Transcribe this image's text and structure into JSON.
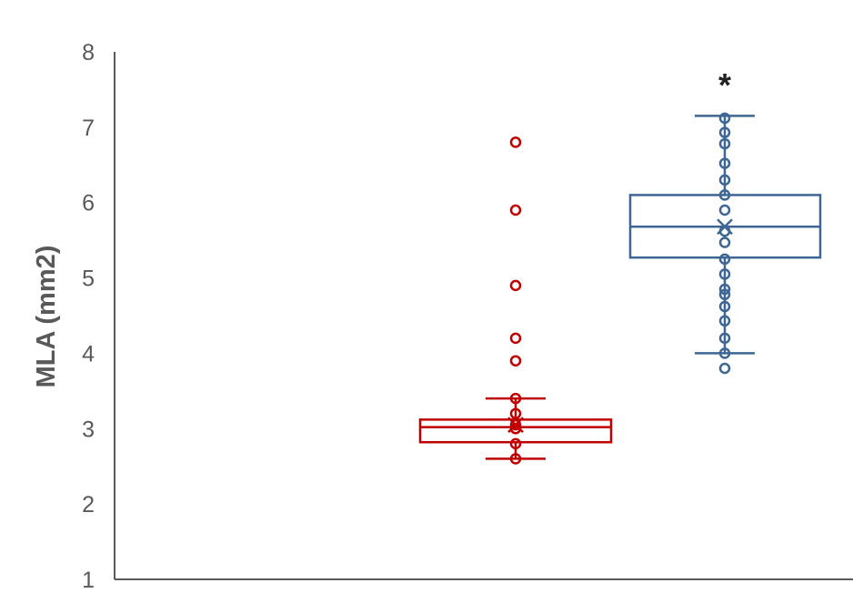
{
  "chart_data": {
    "type": "box",
    "title": "",
    "xlabel": "",
    "ylabel": "MLA (mm2)",
    "ylim": [
      1,
      8
    ],
    "yticks": [
      "1",
      "2",
      "3",
      "4",
      "5",
      "6",
      "7",
      "8"
    ],
    "grid": false,
    "legend": "none",
    "series": [
      {
        "color": "#C00000",
        "min": 2.6,
        "q1": 2.82,
        "median": 3.02,
        "q3": 3.12,
        "max": 3.4,
        "mean": 3.05,
        "points": [
          2.6,
          2.8,
          3.0,
          3.05,
          3.2,
          3.4,
          3.9,
          4.2,
          4.9,
          5.9,
          6.8
        ]
      },
      {
        "color": "#3E6694",
        "min": 4.0,
        "q1": 5.27,
        "median": 5.68,
        "q3": 6.1,
        "max": 7.15,
        "mean": 5.68,
        "points": [
          3.8,
          4.0,
          4.2,
          4.43,
          4.62,
          4.78,
          4.85,
          5.05,
          5.25,
          5.47,
          5.62,
          5.9,
          6.1,
          6.3,
          6.52,
          6.78,
          6.93,
          7.12
        ]
      }
    ],
    "annotations": [
      {
        "text": "*",
        "series_index": 1,
        "y": 7.7
      }
    ]
  }
}
